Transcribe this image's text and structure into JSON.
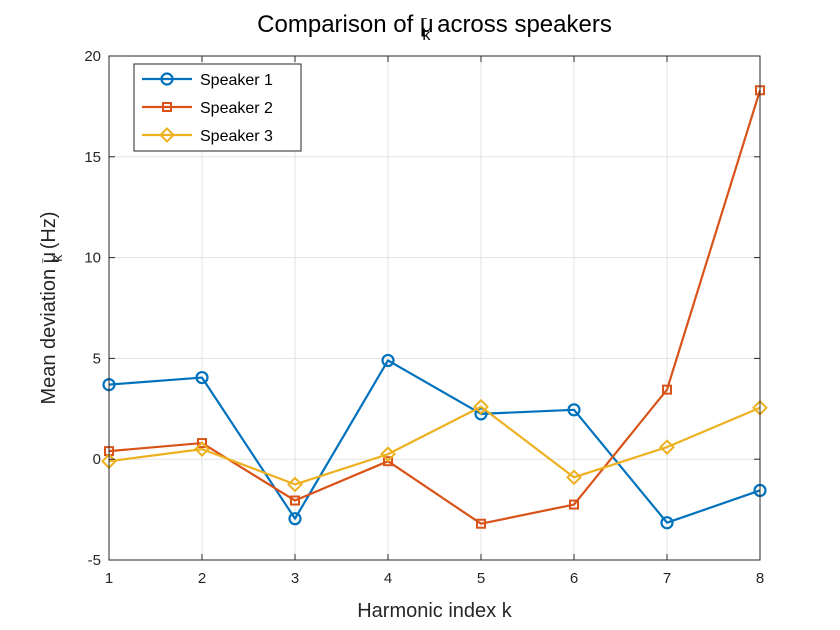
{
  "chart_data": {
    "type": "line",
    "title": "Comparison of μ̄_k across speakers",
    "title_parts": {
      "main": "Comparison of ",
      "sym": "μ",
      "bar": "‾",
      "sub": "k",
      "rest": " across speakers"
    },
    "xlabel": "Harmonic index k",
    "ylabel": "Mean deviation μ̄_k (Hz)",
    "ylabel_parts": {
      "main": "Mean deviation ",
      "sym": "μ",
      "bar": "‾",
      "sub": "k",
      "rest": " (Hz)"
    },
    "x": [
      1,
      2,
      3,
      4,
      5,
      6,
      7,
      8
    ],
    "xlim": [
      1,
      8
    ],
    "ylim": [
      -5,
      20
    ],
    "xticks": [
      "1",
      "2",
      "3",
      "4",
      "5",
      "6",
      "7",
      "8"
    ],
    "yticks": [
      -5,
      0,
      5,
      10,
      15,
      20
    ],
    "grid": true,
    "legend_position": "top-left",
    "series": [
      {
        "name": "Speaker 1",
        "color": "#0072BD",
        "marker": "circle",
        "values": [
          3.7,
          4.05,
          -2.95,
          4.9,
          2.25,
          2.45,
          -3.15,
          -1.55
        ]
      },
      {
        "name": "Speaker 2",
        "color": "#D95319",
        "marker": "square",
        "values": [
          0.4,
          0.8,
          -2.05,
          -0.1,
          -3.2,
          -2.25,
          3.45,
          18.3
        ]
      },
      {
        "name": "Speaker 3",
        "color": "#EDB120",
        "marker": "diamond",
        "values": [
          -0.1,
          0.5,
          -1.25,
          0.25,
          2.6,
          -0.9,
          0.6,
          2.55
        ]
      }
    ]
  }
}
